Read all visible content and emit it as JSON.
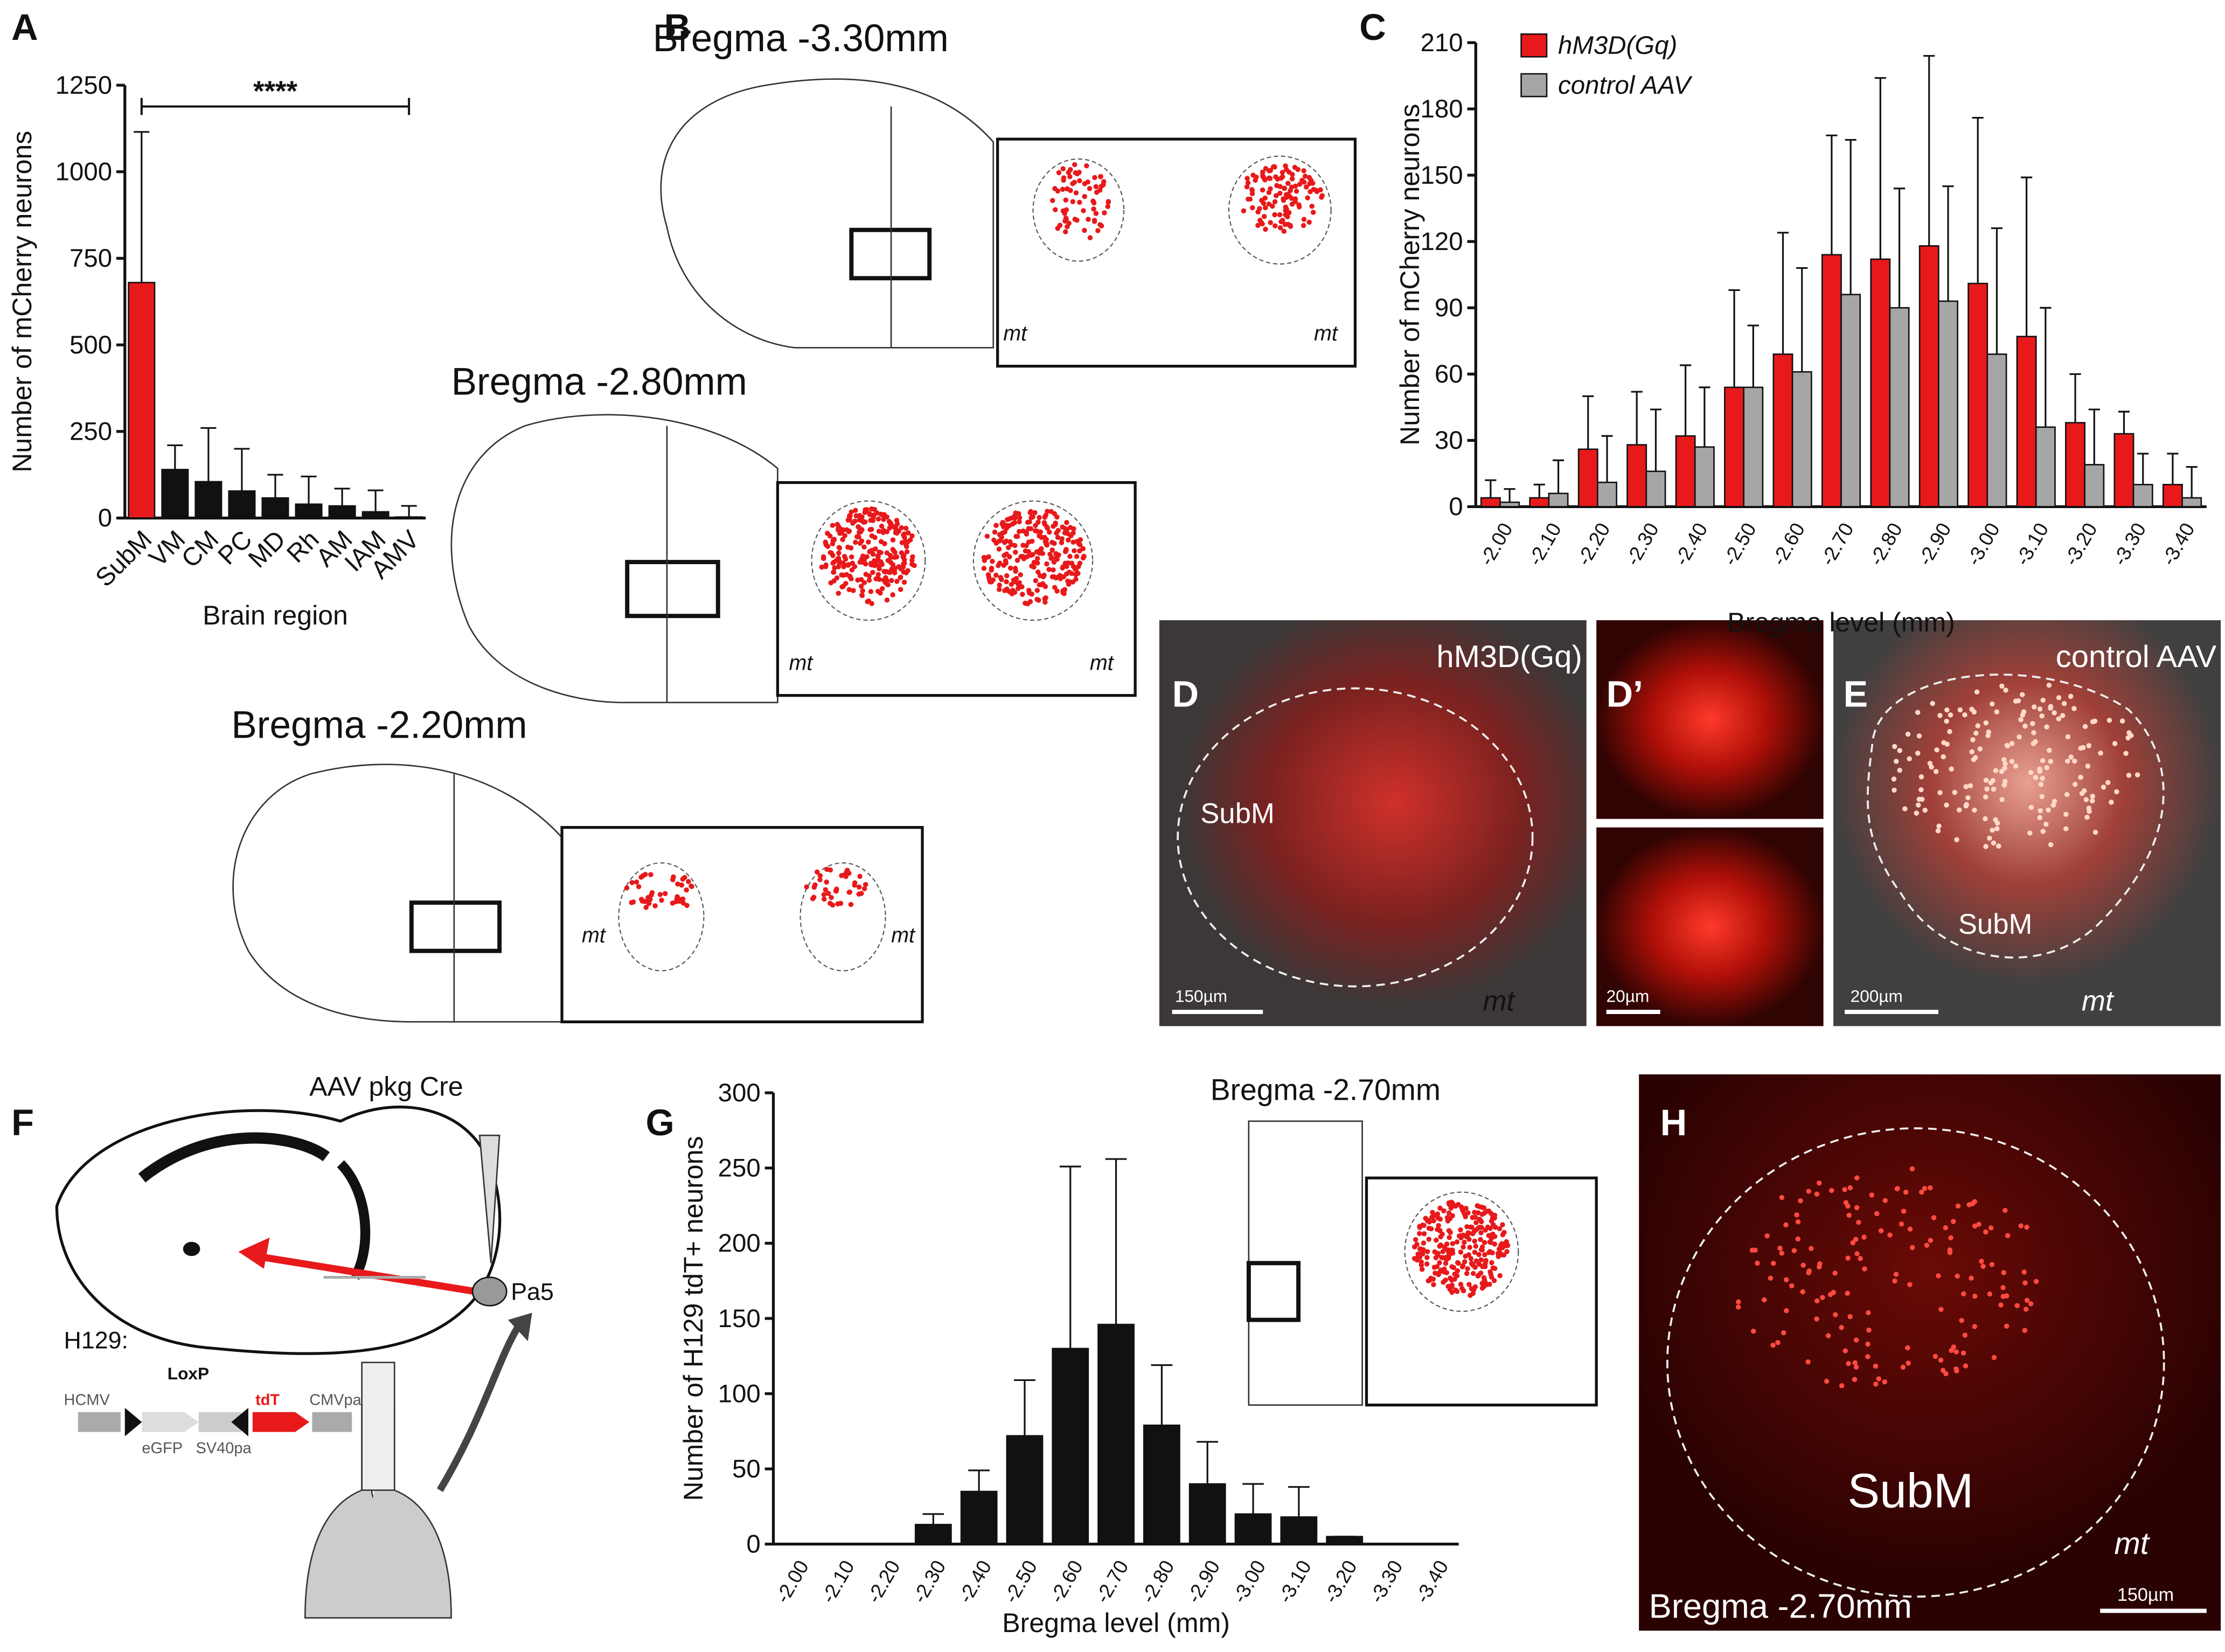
{
  "chart_data": [
    {
      "type": "bar",
      "panel": "A",
      "ylabel": "Number of mCherry neurons",
      "xlabel": "Brain region",
      "annotation": "****",
      "categories": [
        "SubM",
        "VM",
        "CM",
        "PC",
        "MD",
        "Rh",
        "AM",
        "IAM",
        "AMV"
      ],
      "values": [
        680,
        140,
        105,
        78,
        58,
        40,
        35,
        18,
        3
      ],
      "errors": [
        435,
        70,
        155,
        122,
        67,
        80,
        50,
        62,
        32
      ],
      "colors": [
        "#e8191b",
        "#111111",
        "#111111",
        "#111111",
        "#111111",
        "#111111",
        "#111111",
        "#111111",
        "#111111"
      ],
      "ylim": [
        0,
        1250
      ],
      "yticks": [
        0,
        250,
        500,
        750,
        1000,
        1250
      ]
    },
    {
      "type": "bar",
      "panel": "C",
      "ylabel": "Number of mCherry neurons",
      "xlabel": "Bregma level (mm)",
      "categories": [
        "-2.00",
        "-2.10",
        "-2.20",
        "-2.30",
        "-2.40",
        "-2.50",
        "-2.60",
        "-2.70",
        "-2.80",
        "-2.90",
        "-3.00",
        "-3.10",
        "-3.20",
        "-3.30",
        "-3.40"
      ],
      "series": [
        {
          "name": "hM3D(Gq)",
          "color": "#e8191b",
          "values": [
            4,
            4,
            26,
            28,
            32,
            54,
            69,
            114,
            112,
            118,
            101,
            77,
            38,
            33,
            10
          ],
          "errors": [
            8,
            6,
            24,
            24,
            32,
            44,
            55,
            54,
            82,
            86,
            75,
            72,
            22,
            10,
            14
          ]
        },
        {
          "name": "control AAV",
          "color": "#a6a6a6",
          "values": [
            2,
            6,
            11,
            16,
            27,
            54,
            61,
            96,
            90,
            93,
            69,
            36,
            19,
            10,
            4
          ],
          "errors": [
            6,
            15,
            21,
            28,
            27,
            28,
            47,
            70,
            54,
            52,
            57,
            54,
            25,
            14,
            14
          ]
        }
      ],
      "ylim": [
        0,
        210
      ],
      "yticks": [
        0,
        30,
        60,
        90,
        120,
        150,
        180,
        210
      ]
    },
    {
      "type": "bar",
      "panel": "G",
      "ylabel": "Number of H129 tdT+ neurons",
      "xlabel": "Bregma level (mm)",
      "categories": [
        "-2.00",
        "-2.10",
        "-2.20",
        "-2.30",
        "-2.40",
        "-2.50",
        "-2.60",
        "-2.70",
        "-2.80",
        "-2.90",
        "-3.00",
        "-3.10",
        "-3.20",
        "-3.30",
        "-3.40"
      ],
      "values": [
        0,
        0,
        0,
        13,
        35,
        72,
        130,
        146,
        79,
        40,
        20,
        18,
        5,
        0,
        0
      ],
      "errors": [
        0,
        0,
        0,
        7,
        14,
        37,
        121,
        110,
        40,
        28,
        20,
        20,
        0,
        0,
        0
      ],
      "color": "#111111",
      "ylim": [
        0,
        300
      ],
      "yticks": [
        0,
        50,
        100,
        150,
        200,
        250,
        300
      ]
    }
  ],
  "panels": {
    "B": {
      "label": "B",
      "sections": [
        "Bregma -3.30mm",
        "Bregma -2.80mm",
        "Bregma -2.20mm"
      ],
      "mt": "mt"
    },
    "D": {
      "label": "D",
      "group": "hM3D(Gq)",
      "region": "SubM",
      "mt": "mt",
      "scale": "150µm"
    },
    "D2": {
      "label": "D’",
      "scale": "20µm"
    },
    "E": {
      "label": "E",
      "group": "control AAV",
      "region": "SubM",
      "mt": "mt",
      "scale": "200µm"
    },
    "F": {
      "label": "F",
      "injection": "AAV pkg Cre",
      "nucleus": "Pa5",
      "virus": "H129:",
      "loxp": "LoxP",
      "hcmv": "HCMV",
      "egfp": "eGFP",
      "sv40": "SV40pa",
      "tdt": "tdT",
      "cmvpa": "CMVpa"
    },
    "G": {
      "inset": "Bregma -2.70mm"
    },
    "H": {
      "label": "H",
      "region": "SubM",
      "mt": "mt",
      "level": "Bregma -2.70mm",
      "scale": "150µm"
    }
  }
}
